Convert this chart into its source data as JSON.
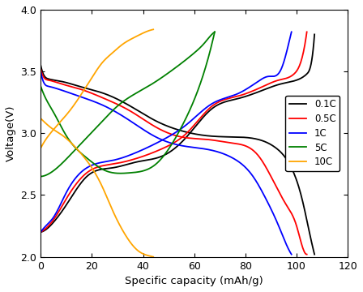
{
  "xlabel": "Specific capacity (mAh/g)",
  "ylabel": "Voltage(V)",
  "xlim": [
    0,
    120
  ],
  "ylim": [
    2.0,
    4.0
  ],
  "xticks": [
    0,
    20,
    40,
    60,
    80,
    100,
    120
  ],
  "yticks": [
    2.0,
    2.5,
    3.0,
    3.5,
    4.0
  ],
  "legend_labels": [
    "0.1C",
    "0.5C",
    "1C",
    "5C",
    "10C"
  ],
  "legend_colors": [
    "#000000",
    "#ff0000",
    "#0000ff",
    "#008000",
    "#ffa500"
  ],
  "curves": {
    "0.1C_discharge": {
      "color": "#000000",
      "x": [
        0,
        1,
        3,
        8,
        15,
        25,
        35,
        45,
        55,
        65,
        75,
        85,
        92,
        98,
        102,
        105,
        107
      ],
      "y": [
        3.55,
        3.48,
        3.44,
        3.42,
        3.38,
        3.32,
        3.22,
        3.1,
        3.02,
        2.98,
        2.97,
        2.95,
        2.88,
        2.72,
        2.48,
        2.2,
        2.02
      ]
    },
    "0.1C_charge": {
      "color": "#000000",
      "x": [
        0,
        2,
        5,
        10,
        18,
        28,
        38,
        48,
        57,
        67,
        77,
        87,
        94,
        100,
        104,
        106,
        107
      ],
      "y": [
        2.2,
        2.22,
        2.28,
        2.42,
        2.65,
        2.72,
        2.77,
        2.82,
        2.97,
        3.2,
        3.28,
        3.35,
        3.4,
        3.43,
        3.48,
        3.6,
        3.8
      ]
    },
    "0.5C_discharge": {
      "color": "#ff0000",
      "x": [
        0,
        1,
        3,
        8,
        15,
        25,
        35,
        45,
        55,
        65,
        75,
        85,
        90,
        96,
        100,
        102,
        104
      ],
      "y": [
        3.52,
        3.46,
        3.43,
        3.4,
        3.36,
        3.28,
        3.18,
        3.05,
        2.97,
        2.95,
        2.92,
        2.82,
        2.65,
        2.42,
        2.25,
        2.1,
        2.02
      ]
    },
    "0.5C_charge": {
      "color": "#ff0000",
      "x": [
        0,
        2,
        5,
        10,
        18,
        28,
        38,
        48,
        57,
        67,
        77,
        87,
        93,
        99,
        102,
        104
      ],
      "y": [
        2.2,
        2.23,
        2.3,
        2.47,
        2.68,
        2.75,
        2.8,
        2.88,
        3.0,
        3.22,
        3.3,
        3.38,
        3.43,
        3.48,
        3.6,
        3.82
      ]
    },
    "1C_discharge": {
      "color": "#0000ff",
      "x": [
        0,
        1,
        3,
        8,
        15,
        25,
        35,
        45,
        55,
        65,
        75,
        83,
        88,
        93,
        96,
        98
      ],
      "y": [
        3.5,
        3.42,
        3.38,
        3.35,
        3.3,
        3.22,
        3.1,
        2.97,
        2.9,
        2.87,
        2.8,
        2.65,
        2.47,
        2.25,
        2.1,
        2.02
      ]
    },
    "1C_charge": {
      "color": "#0000ff",
      "x": [
        0,
        2,
        5,
        10,
        18,
        28,
        38,
        48,
        57,
        67,
        77,
        85,
        89,
        94,
        96,
        98
      ],
      "y": [
        2.2,
        2.25,
        2.32,
        2.52,
        2.72,
        2.78,
        2.85,
        2.95,
        3.07,
        3.24,
        3.32,
        3.42,
        3.46,
        3.52,
        3.65,
        3.82
      ]
    },
    "5C_discharge": {
      "color": "#008000",
      "x": [
        0,
        2,
        5,
        10,
        18,
        25,
        35,
        45,
        55,
        62,
        66,
        68
      ],
      "y": [
        3.38,
        3.28,
        3.17,
        2.98,
        2.8,
        2.7,
        2.68,
        2.75,
        3.05,
        3.38,
        3.65,
        3.82
      ]
    },
    "5C_charge": {
      "color": "#008000",
      "x": [
        0,
        3,
        8,
        15,
        22,
        30,
        42,
        52,
        60,
        64,
        66,
        68
      ],
      "y": [
        2.65,
        2.67,
        2.75,
        2.9,
        3.05,
        3.22,
        3.38,
        3.52,
        3.65,
        3.73,
        3.78,
        3.82
      ]
    },
    "10C_discharge": {
      "color": "#ffa500",
      "x": [
        0,
        2,
        5,
        8,
        12,
        16,
        20,
        24,
        28,
        33,
        38,
        42,
        44
      ],
      "y": [
        3.12,
        3.08,
        3.03,
        2.99,
        2.92,
        2.83,
        2.72,
        2.57,
        2.38,
        2.18,
        2.05,
        2.01,
        2.0
      ]
    },
    "10C_charge": {
      "color": "#ffa500",
      "x": [
        0,
        2,
        5,
        8,
        12,
        16,
        20,
        24,
        28,
        32,
        37,
        41,
        44
      ],
      "y": [
        2.88,
        2.95,
        3.03,
        3.1,
        3.2,
        3.32,
        3.45,
        3.57,
        3.65,
        3.72,
        3.78,
        3.82,
        3.84
      ]
    }
  }
}
